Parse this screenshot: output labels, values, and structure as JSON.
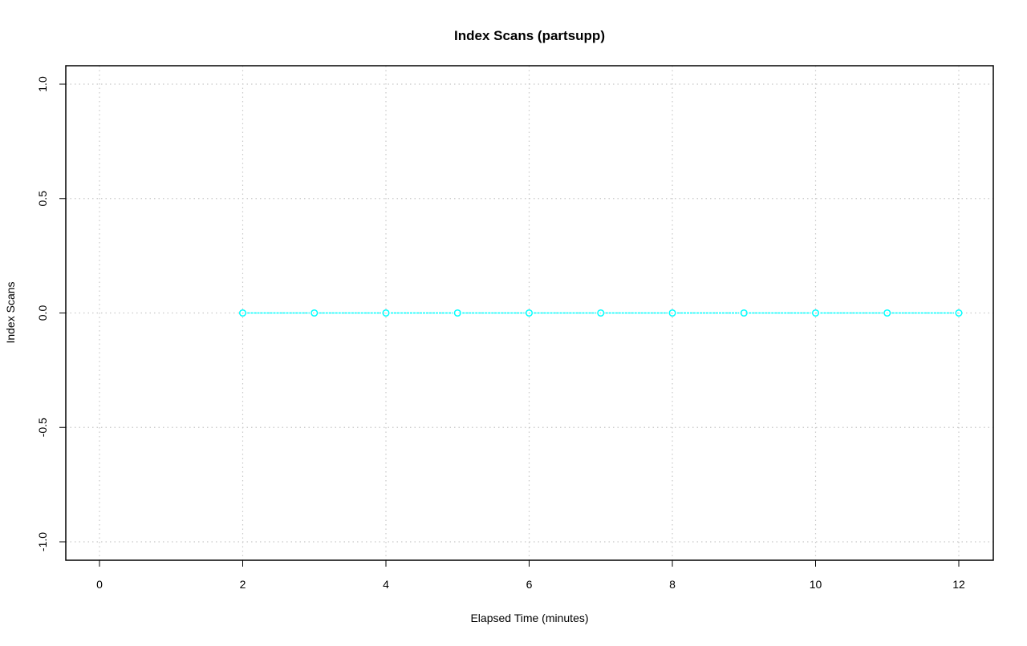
{
  "chart_data": {
    "type": "line",
    "title": "Index Scans (partsupp)",
    "xlabel": "Elapsed Time (minutes)",
    "ylabel": "Index Scans",
    "xlim": [
      0,
      12
    ],
    "ylim": [
      -1,
      1
    ],
    "x_ticks": [
      "0",
      "2",
      "4",
      "6",
      "8",
      "10",
      "12"
    ],
    "y_ticks": [
      "-1.0",
      "-0.5",
      "0.0",
      "0.5",
      "1.0"
    ],
    "grid": true,
    "series": [
      {
        "color": "#00FFFF",
        "marker": "open-circle",
        "x": [
          2,
          3,
          4,
          5,
          6,
          7,
          8,
          9,
          10,
          11,
          12
        ],
        "y": [
          0,
          0,
          0,
          0,
          0,
          0,
          0,
          0,
          0,
          0,
          0
        ]
      }
    ]
  }
}
